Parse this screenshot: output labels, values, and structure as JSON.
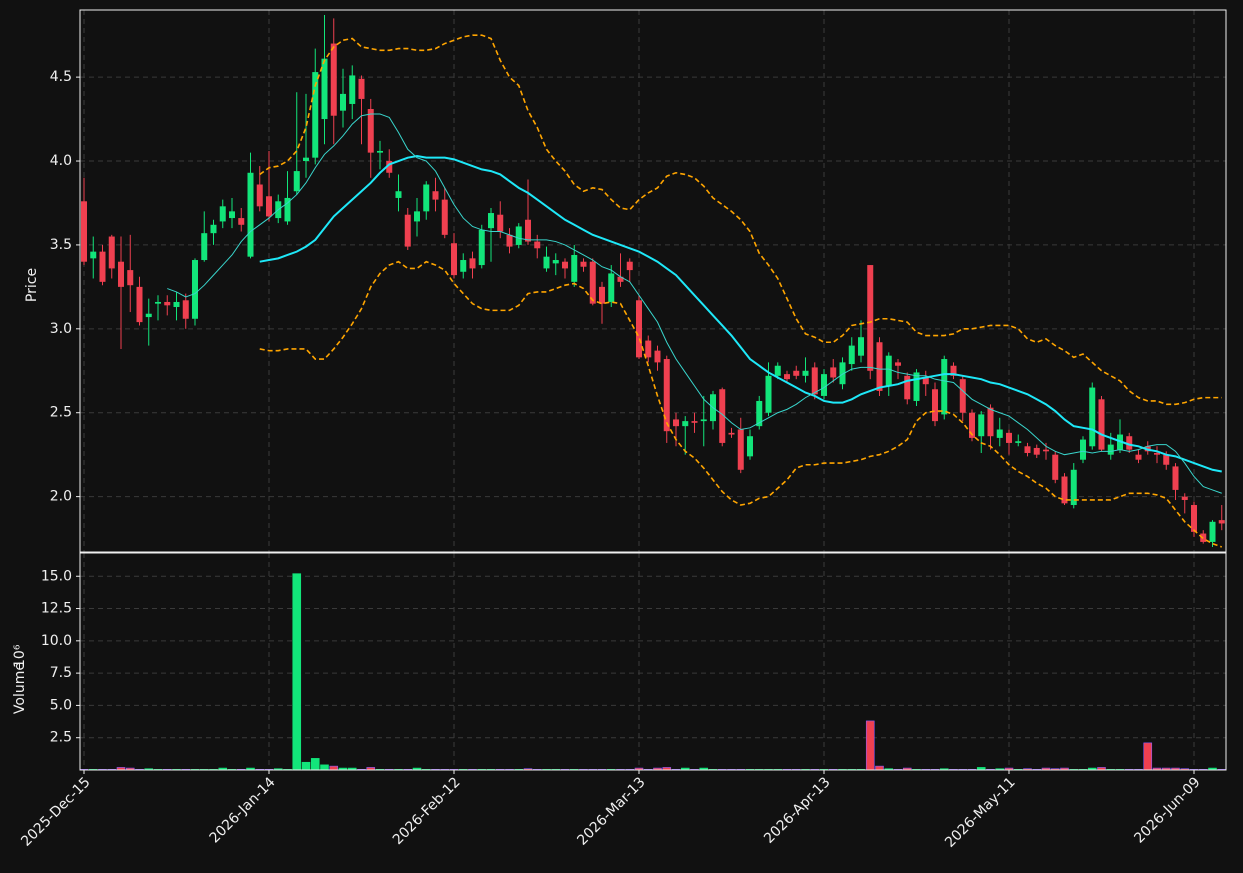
{
  "chart_data": {
    "type": "candlestick",
    "categories": [
      "2025-Dec-15",
      null,
      null,
      null,
      null,
      null,
      null,
      null,
      null,
      null,
      null,
      null,
      null,
      null,
      null,
      null,
      null,
      null,
      null,
      null,
      "2026-Jan-14",
      null,
      null,
      null,
      null,
      null,
      null,
      null,
      null,
      null,
      null,
      null,
      null,
      null,
      null,
      null,
      null,
      null,
      null,
      null,
      "2026-Feb-12",
      null,
      null,
      null,
      null,
      null,
      null,
      null,
      null,
      null,
      null,
      null,
      null,
      null,
      null,
      null,
      null,
      null,
      null,
      null,
      "2026-Mar-13",
      null,
      null,
      null,
      null,
      null,
      null,
      null,
      null,
      null,
      null,
      null,
      null,
      null,
      null,
      null,
      null,
      null,
      null,
      null,
      "2026-Apr-13",
      null,
      null,
      null,
      null,
      null,
      null,
      null,
      null,
      null,
      null,
      null,
      null,
      null,
      null,
      null,
      null,
      null,
      null,
      null,
      "2026-May-11",
      null,
      null,
      null,
      null,
      null,
      null,
      null,
      null,
      null,
      null,
      null,
      null,
      null,
      null,
      null,
      null,
      null,
      null,
      null,
      "2026-Jun-09",
      null,
      null,
      null
    ],
    "open": [
      3.76,
      3.42,
      3.46,
      3.55,
      3.4,
      3.35,
      3.25,
      3.07,
      3.15,
      3.16,
      3.13,
      3.17,
      3.06,
      3.41,
      3.57,
      3.64,
      3.66,
      3.66,
      3.43,
      3.86,
      3.79,
      3.66,
      3.64,
      3.82,
      4.0,
      4.02,
      4.25,
      4.7,
      4.3,
      4.34,
      4.49,
      4.31,
      4.05,
      4.0,
      3.78,
      3.68,
      3.64,
      3.7,
      3.82,
      3.77,
      3.51,
      3.34,
      3.42,
      3.38,
      3.6,
      3.68,
      3.56,
      3.5,
      3.65,
      3.52,
      3.36,
      3.39,
      3.4,
      3.28,
      3.4,
      3.4,
      3.25,
      3.16,
      3.31,
      3.4,
      3.17,
      2.93,
      2.87,
      2.82,
      2.46,
      2.42,
      2.45,
      2.45,
      2.45,
      2.64,
      2.38,
      2.4,
      2.24,
      2.42,
      2.5,
      2.72,
      2.73,
      2.75,
      2.72,
      2.77,
      2.6,
      2.77,
      2.67,
      2.79,
      2.84,
      3.38,
      2.92,
      2.66,
      2.8,
      2.72,
      2.57,
      2.71,
      2.64,
      2.49,
      2.78,
      2.7,
      2.5,
      2.36,
      2.53,
      2.35,
      2.38,
      2.32,
      2.3,
      2.29,
      2.28,
      2.25,
      2.12,
      1.95,
      2.22,
      2.3,
      2.58,
      2.25,
      2.28,
      2.36,
      2.25,
      2.3,
      2.26,
      2.25,
      2.18,
      2.0,
      1.95,
      1.78,
      1.73,
      1.86
    ],
    "high": [
      3.9,
      3.55,
      3.5,
      3.56,
      3.55,
      3.56,
      3.31,
      3.18,
      3.2,
      3.2,
      3.22,
      3.21,
      3.42,
      3.7,
      3.65,
      3.77,
      3.78,
      3.72,
      4.05,
      3.97,
      4.06,
      3.8,
      3.94,
      4.41,
      4.4,
      4.67,
      4.87,
      4.85,
      4.55,
      4.57,
      4.51,
      4.37,
      4.12,
      4.07,
      3.92,
      3.72,
      3.78,
      3.88,
      3.9,
      3.84,
      3.57,
      3.45,
      3.46,
      3.62,
      3.72,
      3.76,
      3.6,
      3.63,
      3.89,
      3.56,
      3.49,
      3.45,
      3.42,
      3.5,
      3.42,
      3.42,
      3.28,
      3.38,
      3.45,
      3.42,
      3.2,
      2.96,
      2.9,
      2.84,
      2.5,
      2.48,
      2.5,
      2.6,
      2.63,
      2.65,
      2.41,
      2.47,
      2.4,
      2.6,
      2.8,
      2.8,
      2.75,
      2.78,
      2.83,
      2.8,
      2.76,
      2.82,
      2.83,
      2.95,
      3.05,
      3.38,
      2.95,
      2.86,
      2.82,
      2.74,
      2.76,
      2.75,
      2.68,
      2.84,
      2.8,
      2.72,
      2.52,
      2.51,
      2.55,
      2.47,
      2.4,
      2.37,
      2.32,
      2.31,
      2.32,
      2.27,
      2.14,
      2.2,
      2.36,
      2.68,
      2.6,
      2.38,
      2.46,
      2.38,
      2.28,
      2.33,
      2.3,
      2.27,
      2.2,
      2.02,
      1.97,
      1.8,
      1.86,
      1.95
    ],
    "low": [
      3.38,
      3.3,
      3.26,
      3.3,
      2.88,
      3.1,
      3.02,
      2.9,
      3.05,
      3.08,
      3.05,
      3.0,
      3.02,
      3.4,
      3.5,
      3.6,
      3.6,
      3.58,
      3.42,
      3.7,
      3.64,
      3.63,
      3.62,
      3.8,
      3.9,
      3.98,
      4.1,
      4.1,
      4.2,
      4.25,
      4.1,
      3.9,
      3.95,
      3.9,
      3.7,
      3.47,
      3.55,
      3.65,
      3.7,
      3.54,
      3.3,
      3.3,
      3.3,
      3.36,
      3.4,
      3.54,
      3.45,
      3.48,
      3.5,
      3.42,
      3.34,
      3.32,
      3.3,
      3.25,
      3.34,
      3.14,
      3.03,
      3.13,
      3.25,
      3.28,
      2.82,
      2.8,
      2.75,
      2.32,
      2.3,
      2.25,
      2.38,
      2.3,
      2.4,
      2.3,
      2.35,
      2.14,
      2.22,
      2.4,
      2.48,
      2.7,
      2.68,
      2.7,
      2.68,
      2.58,
      2.58,
      2.68,
      2.64,
      2.75,
      2.8,
      2.7,
      2.6,
      2.6,
      2.7,
      2.55,
      2.54,
      2.6,
      2.42,
      2.46,
      2.7,
      2.45,
      2.33,
      2.26,
      2.28,
      2.3,
      2.25,
      2.3,
      2.24,
      2.23,
      2.22,
      2.08,
      1.95,
      1.93,
      2.2,
      2.28,
      2.27,
      2.22,
      2.26,
      2.26,
      2.2,
      2.25,
      2.2,
      2.16,
      1.98,
      1.9,
      1.76,
      1.72,
      1.7,
      1.8
    ],
    "close": [
      3.4,
      3.46,
      3.28,
      3.36,
      3.25,
      3.26,
      3.04,
      3.09,
      3.16,
      3.14,
      3.16,
      3.06,
      3.41,
      3.57,
      3.62,
      3.73,
      3.7,
      3.62,
      3.93,
      3.73,
      3.67,
      3.76,
      3.78,
      3.94,
      4.02,
      4.53,
      4.61,
      4.27,
      4.4,
      4.51,
      4.37,
      4.05,
      4.06,
      3.93,
      3.82,
      3.49,
      3.7,
      3.86,
      3.77,
      3.56,
      3.32,
      3.41,
      3.36,
      3.59,
      3.69,
      3.58,
      3.49,
      3.61,
      3.52,
      3.48,
      3.43,
      3.41,
      3.36,
      3.44,
      3.37,
      3.15,
      3.15,
      3.33,
      3.28,
      3.35,
      2.83,
      2.83,
      2.8,
      2.39,
      2.42,
      2.45,
      2.44,
      2.46,
      2.61,
      2.32,
      2.37,
      2.16,
      2.36,
      2.57,
      2.72,
      2.78,
      2.7,
      2.72,
      2.75,
      2.61,
      2.73,
      2.71,
      2.8,
      2.9,
      2.95,
      2.75,
      2.63,
      2.84,
      2.78,
      2.58,
      2.74,
      2.67,
      2.45,
      2.82,
      2.72,
      2.5,
      2.35,
      2.49,
      2.36,
      2.4,
      2.32,
      2.33,
      2.26,
      2.25,
      2.27,
      2.1,
      1.96,
      2.16,
      2.34,
      2.65,
      2.28,
      2.31,
      2.37,
      2.28,
      2.22,
      2.27,
      2.25,
      2.19,
      2.04,
      1.98,
      1.79,
      1.73,
      1.85,
      1.84
    ],
    "volume": [
      0.05,
      0.05,
      0.05,
      0.05,
      0.2,
      0.15,
      0.05,
      0.1,
      0.05,
      0.05,
      0.05,
      0.05,
      0.05,
      0.05,
      0.05,
      0.15,
      0.05,
      0.05,
      0.15,
      0.05,
      0.05,
      0.1,
      0.05,
      15.2,
      0.6,
      0.9,
      0.4,
      0.3,
      0.15,
      0.15,
      0.05,
      0.2,
      0.05,
      0.05,
      0.05,
      0.05,
      0.15,
      0.05,
      0.05,
      0.05,
      0.05,
      0.05,
      0.05,
      0.05,
      0.05,
      0.05,
      0.05,
      0.05,
      0.1,
      0.05,
      0.05,
      0.05,
      0.05,
      0.05,
      0.05,
      0.05,
      0.05,
      0.05,
      0.05,
      0.05,
      0.15,
      0.05,
      0.15,
      0.2,
      0.05,
      0.15,
      0.05,
      0.15,
      0.05,
      0.05,
      0.05,
      0.05,
      0.05,
      0.05,
      0.05,
      0.05,
      0.05,
      0.05,
      0.05,
      0.05,
      0.05,
      0.05,
      0.05,
      0.05,
      0.05,
      3.8,
      0.3,
      0.1,
      0.05,
      0.15,
      0.05,
      0.05,
      0.05,
      0.1,
      0.05,
      0.05,
      0.05,
      0.2,
      0.05,
      0.1,
      0.15,
      0.05,
      0.1,
      0.05,
      0.15,
      0.1,
      0.15,
      0.05,
      0.05,
      0.15,
      0.2,
      0.05,
      0.05,
      0.05,
      0.05,
      2.1,
      0.15,
      0.15,
      0.15,
      0.1,
      0.05,
      0.05,
      0.15,
      0.05
    ],
    "up_color": "#12e57a",
    "down_color": "#ef4050",
    "lines": [
      {
        "color": "#1ee8f8",
        "style": "thick",
        "values": [
          null,
          null,
          null,
          null,
          null,
          null,
          null,
          null,
          null,
          null,
          null,
          null,
          null,
          null,
          null,
          null,
          null,
          null,
          null,
          3.4,
          3.41,
          3.42,
          3.44,
          3.46,
          3.49,
          3.53,
          3.6,
          3.67,
          3.72,
          3.77,
          3.82,
          3.87,
          3.93,
          3.98,
          4.0,
          4.02,
          4.03,
          4.02,
          4.02,
          4.02,
          4.01,
          3.99,
          3.97,
          3.95,
          3.94,
          3.92,
          3.88,
          3.84,
          3.81,
          3.77,
          3.73,
          3.69,
          3.65,
          3.62,
          3.59,
          3.56,
          3.54,
          3.52,
          3.5,
          3.48,
          3.46,
          3.43,
          3.4,
          3.36,
          3.32,
          3.26,
          3.2,
          3.14,
          3.08,
          3.02,
          2.96,
          2.89,
          2.82,
          2.78,
          2.74,
          2.71,
          2.68,
          2.65,
          2.62,
          2.6,
          2.57,
          2.56,
          2.56,
          2.58,
          2.61,
          2.63,
          2.65,
          2.66,
          2.67,
          2.69,
          2.7,
          2.71,
          2.72,
          2.73,
          2.73,
          2.72,
          2.71,
          2.7,
          2.68,
          2.67,
          2.65,
          2.63,
          2.61,
          2.58,
          2.55,
          2.51,
          2.46,
          2.42,
          2.41,
          2.4,
          2.37,
          2.35,
          2.33,
          2.31,
          2.3,
          2.28,
          2.27,
          2.25,
          2.24,
          2.22,
          2.2,
          2.18,
          2.16,
          2.15
        ]
      },
      {
        "color": "#39d5cc",
        "style": "thin",
        "values": [
          null,
          null,
          null,
          null,
          null,
          null,
          null,
          null,
          null,
          3.24,
          3.22,
          3.19,
          3.21,
          3.26,
          3.32,
          3.38,
          3.44,
          3.52,
          3.58,
          3.62,
          3.66,
          3.71,
          3.75,
          3.8,
          3.87,
          3.96,
          4.04,
          4.09,
          4.15,
          4.22,
          4.27,
          4.28,
          4.28,
          4.26,
          4.17,
          4.07,
          4.02,
          4.0,
          3.94,
          3.84,
          3.74,
          3.66,
          3.61,
          3.59,
          3.58,
          3.58,
          3.56,
          3.54,
          3.53,
          3.53,
          3.53,
          3.52,
          3.5,
          3.47,
          3.44,
          3.41,
          3.37,
          3.35,
          3.31,
          3.28,
          3.2,
          3.12,
          3.04,
          2.92,
          2.82,
          2.74,
          2.66,
          2.58,
          2.53,
          2.49,
          2.44,
          2.4,
          2.41,
          2.44,
          2.47,
          2.5,
          2.52,
          2.55,
          2.59,
          2.62,
          2.65,
          2.69,
          2.73,
          2.76,
          2.77,
          2.77,
          2.76,
          2.76,
          2.74,
          2.73,
          2.72,
          2.72,
          2.7,
          2.69,
          2.68,
          2.63,
          2.58,
          2.55,
          2.52,
          2.5,
          2.48,
          2.44,
          2.4,
          2.35,
          2.3,
          2.27,
          2.25,
          2.26,
          2.27,
          2.26,
          2.27,
          2.27,
          2.28,
          2.27,
          2.28,
          2.3,
          2.31,
          2.31,
          2.27,
          2.2,
          2.12,
          2.06,
          2.04,
          2.02
        ]
      },
      {
        "color": "#ffa500",
        "style": "dashed",
        "values": [
          null,
          null,
          null,
          null,
          null,
          null,
          null,
          null,
          null,
          null,
          null,
          null,
          null,
          null,
          null,
          null,
          null,
          null,
          null,
          3.92,
          3.96,
          3.97,
          4.0,
          4.06,
          4.2,
          4.45,
          4.6,
          4.68,
          4.72,
          4.73,
          4.68,
          4.67,
          4.66,
          4.66,
          4.67,
          4.67,
          4.66,
          4.66,
          4.67,
          4.7,
          4.72,
          4.74,
          4.75,
          4.75,
          4.73,
          4.6,
          4.5,
          4.45,
          4.3,
          4.2,
          4.07,
          4.0,
          3.94,
          3.86,
          3.82,
          3.84,
          3.83,
          3.77,
          3.72,
          3.71,
          3.77,
          3.81,
          3.84,
          3.91,
          3.93,
          3.92,
          3.9,
          3.85,
          3.78,
          3.74,
          3.7,
          3.65,
          3.58,
          3.45,
          3.38,
          3.3,
          3.18,
          3.06,
          2.97,
          2.95,
          2.92,
          2.92,
          2.96,
          3.02,
          3.03,
          3.04,
          3.06,
          3.06,
          3.05,
          3.04,
          2.98,
          2.96,
          2.96,
          2.96,
          2.97,
          3.0,
          3.0,
          3.01,
          3.02,
          3.02,
          3.02,
          3.0,
          2.94,
          2.92,
          2.94,
          2.9,
          2.87,
          2.83,
          2.85,
          2.8,
          2.75,
          2.72,
          2.69,
          2.63,
          2.59,
          2.57,
          2.57,
          2.55,
          2.55,
          2.56,
          2.58,
          2.59,
          2.59,
          2.59
        ]
      },
      {
        "color": "#ffa500",
        "style": "dashed",
        "values": [
          null,
          null,
          null,
          null,
          null,
          null,
          null,
          null,
          null,
          null,
          null,
          null,
          null,
          null,
          null,
          null,
          null,
          null,
          null,
          2.88,
          2.87,
          2.87,
          2.88,
          2.88,
          2.88,
          2.82,
          2.82,
          2.88,
          2.95,
          3.03,
          3.12,
          3.25,
          3.33,
          3.38,
          3.4,
          3.36,
          3.36,
          3.4,
          3.38,
          3.35,
          3.27,
          3.21,
          3.15,
          3.12,
          3.11,
          3.11,
          3.11,
          3.14,
          3.21,
          3.22,
          3.22,
          3.24,
          3.26,
          3.27,
          3.24,
          3.17,
          3.15,
          3.16,
          3.15,
          3.05,
          2.95,
          2.78,
          2.6,
          2.44,
          2.34,
          2.27,
          2.23,
          2.17,
          2.1,
          2.03,
          1.98,
          1.95,
          1.96,
          1.99,
          2.0,
          2.05,
          2.1,
          2.17,
          2.19,
          2.19,
          2.2,
          2.2,
          2.2,
          2.21,
          2.22,
          2.24,
          2.25,
          2.27,
          2.3,
          2.34,
          2.45,
          2.5,
          2.51,
          2.51,
          2.49,
          2.44,
          2.37,
          2.32,
          2.3,
          2.25,
          2.19,
          2.15,
          2.12,
          2.08,
          2.05,
          2.0,
          1.98,
          1.98,
          1.98,
          1.98,
          1.98,
          1.98,
          2.0,
          2.02,
          2.02,
          2.02,
          2.01,
          1.99,
          1.92,
          1.85,
          1.8,
          1.75,
          1.72,
          1.7
        ]
      }
    ],
    "ylabel": "Price",
    "ylim": [
      1.67,
      4.9
    ],
    "yticks": [
      {
        "value": 2,
        "label": "2.0"
      },
      2.5,
      {
        "value": 3,
        "label": "3.0"
      },
      3.5,
      {
        "value": 4,
        "label": "4.0"
      },
      4.5
    ],
    "volume_label": "Volume",
    "volume_scale_label": "10⁶",
    "volume_ylim": [
      0,
      16.8
    ],
    "volume_yticks": [
      2.5,
      {
        "value": 5,
        "label": "5.0"
      },
      7.5,
      {
        "value": 10,
        "label": "10.0"
      },
      12.5,
      {
        "value": 15,
        "label": "15.0"
      }
    ],
    "grid": true
  }
}
